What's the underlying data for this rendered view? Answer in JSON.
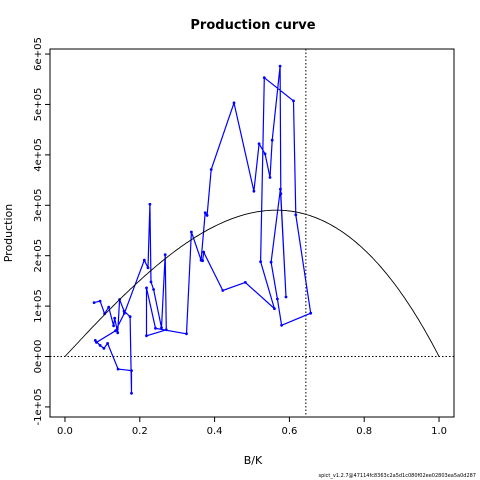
{
  "chart_data": {
    "type": "line",
    "title": "Production curve",
    "xlabel": "B/K",
    "ylabel": "Production",
    "xlim": [
      -0.04,
      1.04
    ],
    "ylim": [
      -120000,
      610000
    ],
    "x_ticks": [
      "0.0",
      "0.2",
      "0.4",
      "0.6",
      "0.8",
      "1.0"
    ],
    "y_ticks": [
      "-1e+05",
      "0e+00",
      "1e+05",
      "2e+05",
      "3e+05",
      "4e+05",
      "5e+05",
      "6e+05"
    ],
    "grid": false,
    "series": [
      {
        "color": "#0000ff",
        "points": [
          [
            0.078,
            107000
          ],
          [
            0.094,
            110000
          ],
          [
            0.106,
            85000
          ],
          [
            0.117,
            98000
          ],
          [
            0.13,
            61000
          ],
          [
            0.133,
            76000
          ],
          [
            0.141,
            47000
          ],
          [
            0.146,
            113000
          ],
          [
            0.158,
            90000
          ],
          [
            0.174,
            79000
          ],
          [
            0.178,
            -73000
          ],
          [
            0.178,
            -28000
          ],
          [
            0.142,
            -25000
          ],
          [
            0.114,
            26000
          ],
          [
            0.104,
            16000
          ],
          [
            0.094,
            22000
          ],
          [
            0.081,
            32000
          ],
          [
            0.084,
            28000
          ],
          [
            0.135,
            51000
          ],
          [
            0.159,
            86000
          ],
          [
            0.212,
            191000
          ],
          [
            0.222,
            176000
          ],
          [
            0.227,
            302000
          ],
          [
            0.23,
            148000
          ],
          [
            0.237,
            133000
          ],
          [
            0.258,
            57000
          ],
          [
            0.268,
            202000
          ],
          [
            0.271,
            53000
          ],
          [
            0.218,
            41000
          ],
          [
            0.218,
            136000
          ],
          [
            0.242,
            56000
          ],
          [
            0.325,
            45000
          ],
          [
            0.338,
            247000
          ],
          [
            0.364,
            191000
          ],
          [
            0.375,
            285000
          ],
          [
            0.38,
            280000
          ],
          [
            0.391,
            371000
          ],
          [
            0.452,
            503000
          ],
          [
            0.505,
            328000
          ],
          [
            0.519,
            422000
          ],
          [
            0.535,
            402000
          ],
          [
            0.548,
            355000
          ],
          [
            0.554,
            429000
          ],
          [
            0.575,
            576000
          ],
          [
            0.577,
            323000
          ],
          [
            0.591,
            118000
          ],
          [
            0.576,
            332000
          ],
          [
            0.551,
            187000
          ],
          [
            0.568,
            114000
          ],
          [
            0.579,
            62000
          ],
          [
            0.657,
            86000
          ],
          [
            0.617,
            281000
          ],
          [
            0.611,
            507000
          ],
          [
            0.533,
            553000
          ],
          [
            0.523,
            188000
          ],
          [
            0.56,
            95000
          ],
          [
            0.482,
            147000
          ],
          [
            0.422,
            131000
          ],
          [
            0.371,
            207000
          ],
          [
            0.368,
            190000
          ]
        ]
      },
      {
        "color": "#000000",
        "curve": "production_curve",
        "x_range": [
          0,
          1
        ],
        "peak_x": 0.644,
        "peak_y": 282000
      }
    ],
    "reference_lines": [
      {
        "orientation": "horizontal",
        "value": 0,
        "style": "dotted"
      },
      {
        "orientation": "vertical",
        "value": 0.644,
        "style": "dotted"
      }
    ]
  },
  "footer": "spict_v1.2.7@47114fc8363c2a5d1c080f02ee02803ea5a0d287"
}
